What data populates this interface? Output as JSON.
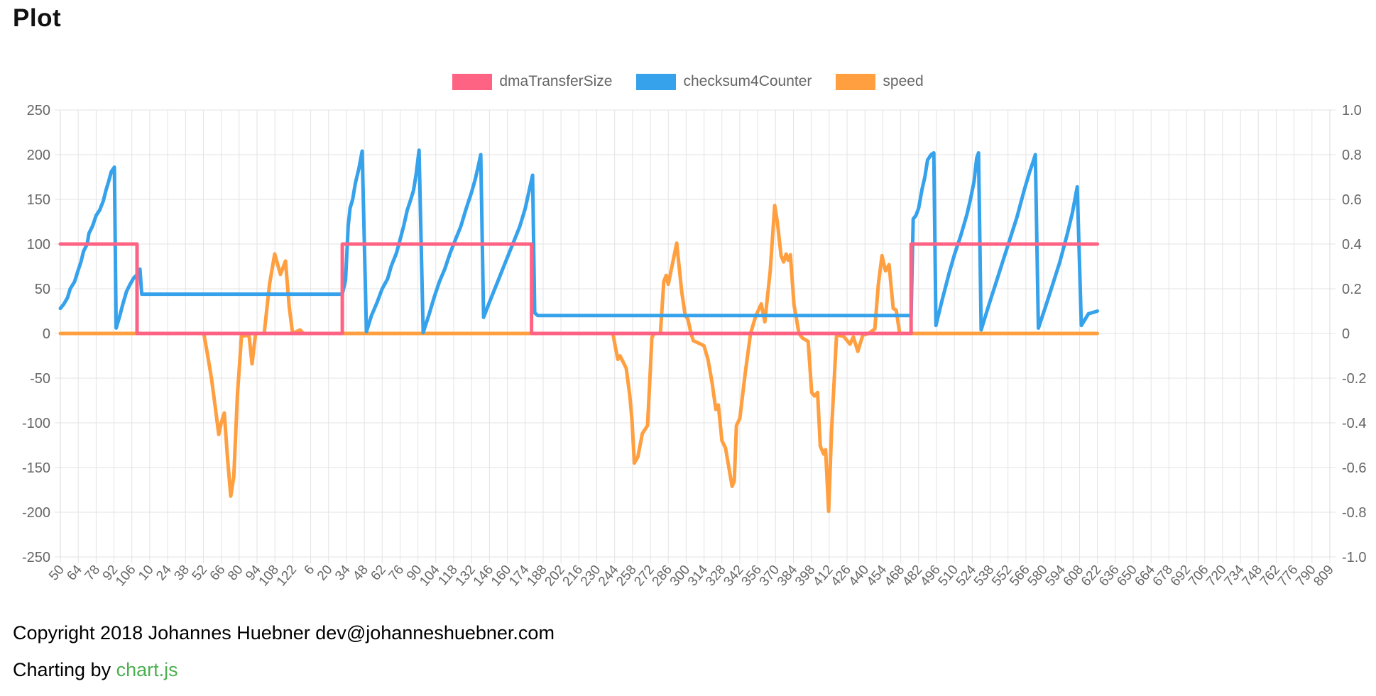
{
  "page": {
    "title": "Plot"
  },
  "footer": {
    "copyright": "Copyright 2018 Johannes Huebner dev@johanneshuebner.com",
    "charting_prefix": "Charting by ",
    "charting_link": "chart.js",
    "link_color": "#4caf50"
  },
  "chart_data": {
    "type": "line",
    "title": "",
    "legend_position": "top",
    "grid": true,
    "x_labels": [
      "50",
      "64",
      "78",
      "92",
      "106",
      "10",
      "24",
      "38",
      "52",
      "66",
      "80",
      "94",
      "108",
      "122",
      "6",
      "20",
      "34",
      "48",
      "62",
      "76",
      "90",
      "104",
      "118",
      "132",
      "146",
      "160",
      "174",
      "188",
      "202",
      "216",
      "230",
      "244",
      "258",
      "272",
      "286",
      "300",
      "314",
      "328",
      "342",
      "356",
      "370",
      "384",
      "398",
      "412",
      "426",
      "440",
      "454",
      "468",
      "482",
      "496",
      "510",
      "524",
      "538",
      "552",
      "566",
      "580",
      "594",
      "608",
      "622",
      "636",
      "650",
      "664",
      "678",
      "692",
      "706",
      "720",
      "734",
      "748",
      "762",
      "776",
      "790",
      "809"
    ],
    "left_axis": {
      "min": -250,
      "max": 250,
      "ticks": [
        "250",
        "200",
        "150",
        "100",
        "50",
        "0",
        "-50",
        "-100",
        "-150",
        "-200",
        "-250"
      ]
    },
    "right_axis": {
      "min": -1.0,
      "max": 1.0,
      "ticks": [
        "1.0",
        "0.8",
        "0.6",
        "0.4",
        "0.2",
        "0",
        "-0.2",
        "-0.4",
        "-0.6",
        "-0.8",
        "-1.0"
      ]
    },
    "x_unit": "label index (fractional), series plotted on left axis",
    "colors": {
      "grid": "#e3e3e3",
      "tick_text": "#666666"
    },
    "series": [
      {
        "name": "dmaTransferSize",
        "color": "#ff6384",
        "axis": "left",
        "points": [
          [
            0,
            100
          ],
          [
            4.29,
            100
          ],
          [
            4.29,
            0
          ],
          [
            15.77,
            0
          ],
          [
            15.77,
            100
          ],
          [
            26.35,
            100
          ],
          [
            26.35,
            0
          ],
          [
            47.58,
            0
          ],
          [
            47.58,
            100
          ],
          [
            58,
            100
          ]
        ]
      },
      {
        "name": "checksum4Counter",
        "color": "#36a2eb",
        "axis": "left",
        "points": [
          [
            0,
            28
          ],
          [
            0.2,
            33
          ],
          [
            0.4,
            40
          ],
          [
            0.55,
            50
          ],
          [
            0.8,
            58
          ],
          [
            1.0,
            71
          ],
          [
            1.15,
            80
          ],
          [
            1.3,
            92
          ],
          [
            1.5,
            100
          ],
          [
            1.6,
            112
          ],
          [
            1.8,
            120
          ],
          [
            2.0,
            132
          ],
          [
            2.2,
            138
          ],
          [
            2.4,
            148
          ],
          [
            2.55,
            160
          ],
          [
            2.7,
            170
          ],
          [
            2.85,
            181
          ],
          [
            3.02,
            186
          ],
          [
            3.12,
            6
          ],
          [
            3.3,
            18
          ],
          [
            3.5,
            33
          ],
          [
            3.7,
            47
          ],
          [
            3.9,
            55
          ],
          [
            4.1,
            62
          ],
          [
            4.3,
            66
          ],
          [
            4.45,
            72
          ],
          [
            4.55,
            44
          ],
          [
            15.77,
            44
          ],
          [
            15.95,
            60
          ],
          [
            16.1,
            120
          ],
          [
            16.2,
            140
          ],
          [
            16.35,
            150
          ],
          [
            16.5,
            168
          ],
          [
            16.7,
            185
          ],
          [
            16.88,
            204
          ],
          [
            17.12,
            2
          ],
          [
            17.4,
            20
          ],
          [
            17.7,
            34
          ],
          [
            18.0,
            50
          ],
          [
            18.3,
            61
          ],
          [
            18.5,
            75
          ],
          [
            18.8,
            90
          ],
          [
            19.0,
            105
          ],
          [
            19.2,
            120
          ],
          [
            19.4,
            138
          ],
          [
            19.6,
            150
          ],
          [
            19.75,
            160
          ],
          [
            19.9,
            178
          ],
          [
            20.06,
            205
          ],
          [
            20.29,
            1
          ],
          [
            20.6,
            20
          ],
          [
            20.9,
            40
          ],
          [
            21.2,
            58
          ],
          [
            21.5,
            72
          ],
          [
            21.8,
            90
          ],
          [
            22.1,
            105
          ],
          [
            22.4,
            120
          ],
          [
            22.7,
            140
          ],
          [
            23.0,
            158
          ],
          [
            23.2,
            172
          ],
          [
            23.35,
            185
          ],
          [
            23.51,
            200
          ],
          [
            23.67,
            18
          ],
          [
            23.9,
            30
          ],
          [
            24.2,
            45
          ],
          [
            24.5,
            60
          ],
          [
            24.8,
            75
          ],
          [
            25.1,
            90
          ],
          [
            25.4,
            105
          ],
          [
            25.7,
            120
          ],
          [
            26.0,
            140
          ],
          [
            26.2,
            158
          ],
          [
            26.41,
            177
          ],
          [
            26.53,
            23
          ],
          [
            26.7,
            20
          ],
          [
            47.58,
            20
          ],
          [
            47.7,
            128
          ],
          [
            47.85,
            132
          ],
          [
            48.0,
            140
          ],
          [
            48.2,
            162
          ],
          [
            48.35,
            175
          ],
          [
            48.5,
            194
          ],
          [
            48.7,
            200
          ],
          [
            48.85,
            202
          ],
          [
            48.97,
            9
          ],
          [
            49.3,
            36
          ],
          [
            49.7,
            67
          ],
          [
            50.0,
            88
          ],
          [
            50.35,
            109
          ],
          [
            50.7,
            133
          ],
          [
            50.9,
            150
          ],
          [
            51.1,
            170
          ],
          [
            51.25,
            196
          ],
          [
            51.35,
            202
          ],
          [
            51.5,
            4
          ],
          [
            51.9,
            30
          ],
          [
            52.3,
            55
          ],
          [
            52.7,
            80
          ],
          [
            53.1,
            105
          ],
          [
            53.5,
            130
          ],
          [
            53.9,
            160
          ],
          [
            54.2,
            180
          ],
          [
            54.4,
            192
          ],
          [
            54.53,
            200
          ],
          [
            54.7,
            6
          ],
          [
            55.1,
            30
          ],
          [
            55.5,
            55
          ],
          [
            55.9,
            80
          ],
          [
            56.3,
            110
          ],
          [
            56.6,
            135
          ],
          [
            56.87,
            164
          ],
          [
            57.1,
            9
          ],
          [
            57.5,
            22
          ],
          [
            58,
            25
          ]
        ]
      },
      {
        "name": "speed",
        "color": "#ff9f40",
        "axis": "left",
        "points": [
          [
            0,
            0
          ],
          [
            8.02,
            0
          ],
          [
            8.2,
            -20
          ],
          [
            8.45,
            -50
          ],
          [
            8.65,
            -80
          ],
          [
            8.86,
            -113
          ],
          [
            9.0,
            -100
          ],
          [
            9.17,
            -89
          ],
          [
            9.35,
            -140
          ],
          [
            9.53,
            -182
          ],
          [
            9.7,
            -160
          ],
          [
            9.9,
            -70
          ],
          [
            10.13,
            -3
          ],
          [
            10.55,
            -2
          ],
          [
            10.72,
            -34
          ],
          [
            10.92,
            0
          ],
          [
            11.4,
            0
          ],
          [
            11.7,
            55
          ],
          [
            11.99,
            89
          ],
          [
            12.31,
            66
          ],
          [
            12.59,
            81
          ],
          [
            12.8,
            30
          ],
          [
            12.99,
            0
          ],
          [
            13.4,
            4
          ],
          [
            13.6,
            0
          ],
          [
            30.9,
            0
          ],
          [
            31.05,
            -16
          ],
          [
            31.18,
            -29
          ],
          [
            31.3,
            -25
          ],
          [
            31.65,
            -39
          ],
          [
            31.85,
            -70
          ],
          [
            31.97,
            -97
          ],
          [
            32.1,
            -145
          ],
          [
            32.3,
            -138
          ],
          [
            32.55,
            -112
          ],
          [
            32.84,
            -103
          ],
          [
            33.0,
            -40
          ],
          [
            33.08,
            -5
          ],
          [
            33.2,
            0
          ],
          [
            33.56,
            0
          ],
          [
            33.75,
            58
          ],
          [
            33.88,
            65
          ],
          [
            34.0,
            55
          ],
          [
            34.47,
            101
          ],
          [
            34.75,
            47
          ],
          [
            34.95,
            20
          ],
          [
            35.1,
            16
          ],
          [
            35.27,
            0
          ],
          [
            35.4,
            -8
          ],
          [
            35.82,
            -12
          ],
          [
            36.0,
            -14
          ],
          [
            36.22,
            -29
          ],
          [
            36.45,
            -55
          ],
          [
            36.66,
            -85
          ],
          [
            36.8,
            -80
          ],
          [
            37.0,
            -120
          ],
          [
            37.2,
            -128
          ],
          [
            37.57,
            -171
          ],
          [
            37.69,
            -165
          ],
          [
            37.81,
            -103
          ],
          [
            38.0,
            -95
          ],
          [
            38.3,
            -45
          ],
          [
            38.6,
            0
          ],
          [
            38.9,
            20
          ],
          [
            39.2,
            33
          ],
          [
            39.4,
            13
          ],
          [
            39.7,
            70
          ],
          [
            39.95,
            143
          ],
          [
            40.1,
            125
          ],
          [
            40.31,
            87
          ],
          [
            40.45,
            80
          ],
          [
            40.59,
            89
          ],
          [
            40.7,
            82
          ],
          [
            40.83,
            88
          ],
          [
            41.03,
            32
          ],
          [
            41.31,
            0
          ],
          [
            41.5,
            -5
          ],
          [
            41.82,
            -9
          ],
          [
            42.02,
            -66
          ],
          [
            42.18,
            -70
          ],
          [
            42.35,
            -66
          ],
          [
            42.5,
            -126
          ],
          [
            42.69,
            -135
          ],
          [
            42.8,
            -130
          ],
          [
            42.97,
            -199
          ],
          [
            43.13,
            -110
          ],
          [
            43.41,
            -2
          ],
          [
            43.8,
            -3
          ],
          [
            44.16,
            -12
          ],
          [
            44.35,
            -4
          ],
          [
            44.6,
            -20
          ],
          [
            44.88,
            -2
          ],
          [
            45.2,
            0
          ],
          [
            45.55,
            5
          ],
          [
            45.75,
            55
          ],
          [
            45.95,
            87
          ],
          [
            46.15,
            70
          ],
          [
            46.35,
            77
          ],
          [
            46.58,
            28
          ],
          [
            46.75,
            26
          ],
          [
            46.94,
            0
          ],
          [
            58,
            0
          ]
        ]
      }
    ]
  }
}
